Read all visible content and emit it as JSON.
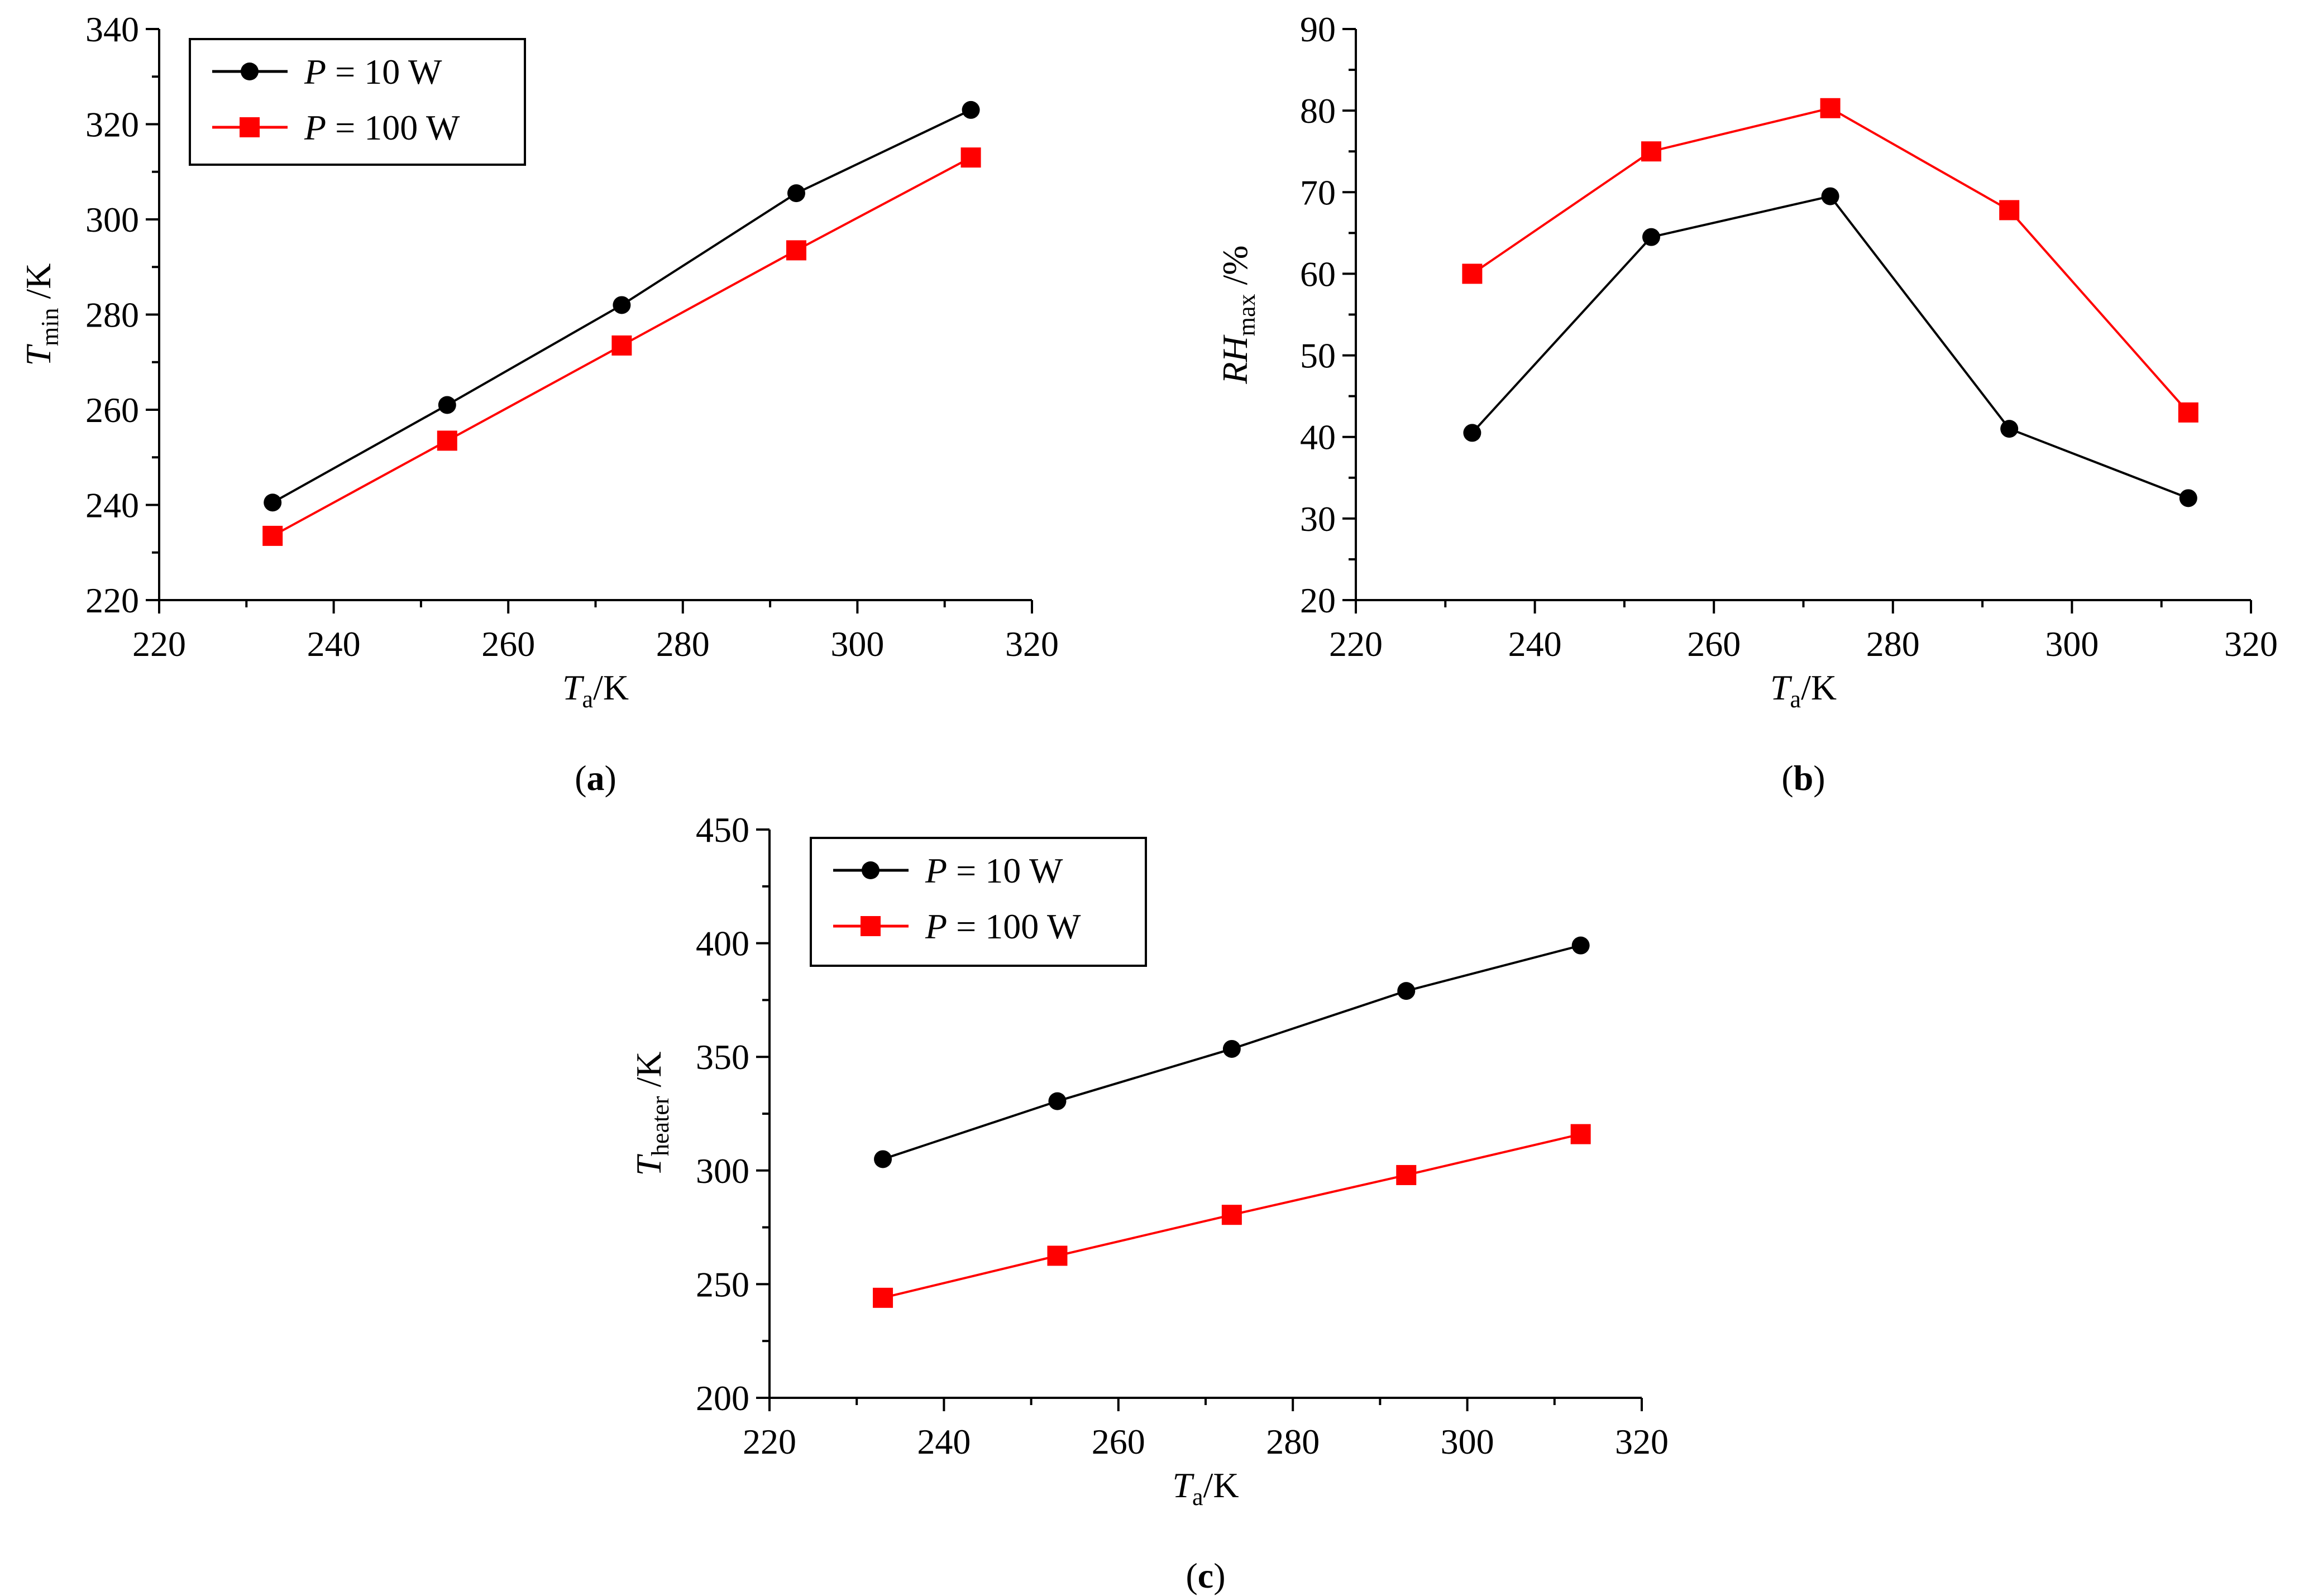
{
  "chart_data": [
    {
      "id": "a",
      "type": "line",
      "panel_label": "a",
      "x": [
        233,
        253,
        273,
        293,
        313
      ],
      "xlim": [
        220,
        320
      ],
      "xticks": [
        220,
        240,
        260,
        280,
        300,
        320
      ],
      "ylim": [
        220,
        340
      ],
      "yticks": [
        220,
        240,
        260,
        280,
        300,
        320,
        340
      ],
      "xlabel": {
        "main": "T",
        "sub": "a",
        "tail": "/K"
      },
      "ylabel": {
        "main": "T",
        "sub": "min",
        "tail": " /K"
      },
      "legend": "top-left",
      "series": [
        {
          "name": "P = 10 W",
          "legend_var": "P",
          "legend_rest": " = 10 W",
          "color": "#000000",
          "marker": "circle",
          "values": [
            240.5,
            261,
            282,
            305.5,
            323
          ]
        },
        {
          "name": "P = 100 W",
          "legend_var": "P",
          "legend_rest": " = 100 W",
          "color": "#ff0000",
          "marker": "square",
          "values": [
            233.5,
            253.5,
            273.5,
            293.5,
            313
          ]
        }
      ]
    },
    {
      "id": "b",
      "type": "line",
      "panel_label": "b",
      "x": [
        233,
        253,
        273,
        293,
        313
      ],
      "xlim": [
        220,
        320
      ],
      "xticks": [
        220,
        240,
        260,
        280,
        300,
        320
      ],
      "ylim": [
        20,
        90
      ],
      "yticks": [
        20,
        30,
        40,
        50,
        60,
        70,
        80,
        90
      ],
      "xlabel": {
        "main": "T",
        "sub": "a",
        "tail": "/K"
      },
      "ylabel": {
        "main": "RH",
        "sub": "max",
        "tail": " /%"
      },
      "legend": "none",
      "series": [
        {
          "name": "P = 10 W",
          "color": "#000000",
          "marker": "circle",
          "values": [
            40.5,
            64.5,
            69.5,
            41,
            32.5
          ]
        },
        {
          "name": "P = 100 W",
          "color": "#ff0000",
          "marker": "square",
          "values": [
            60,
            75,
            80.3,
            67.8,
            43
          ]
        }
      ]
    },
    {
      "id": "c",
      "type": "line",
      "panel_label": "c",
      "x": [
        233,
        253,
        273,
        293,
        313
      ],
      "xlim": [
        220,
        320
      ],
      "xticks": [
        220,
        240,
        260,
        280,
        300,
        320
      ],
      "ylim": [
        200,
        450
      ],
      "yticks": [
        200,
        250,
        300,
        350,
        400,
        450
      ],
      "xlabel": {
        "main": "T",
        "sub": "a",
        "tail": "/K"
      },
      "ylabel": {
        "main": "T",
        "sub": "heater",
        "tail": " /K"
      },
      "legend": "top-left",
      "series": [
        {
          "name": "P = 10 W",
          "legend_var": "P",
          "legend_rest": " = 10 W",
          "color": "#000000",
          "marker": "circle",
          "values": [
            305,
            330.5,
            353.5,
            379,
            399
          ]
        },
        {
          "name": "P = 100 W",
          "legend_var": "P",
          "legend_rest": " = 100 W",
          "color": "#ff0000",
          "marker": "square",
          "values": [
            244,
            262.5,
            280.5,
            298,
            316
          ]
        }
      ]
    }
  ]
}
